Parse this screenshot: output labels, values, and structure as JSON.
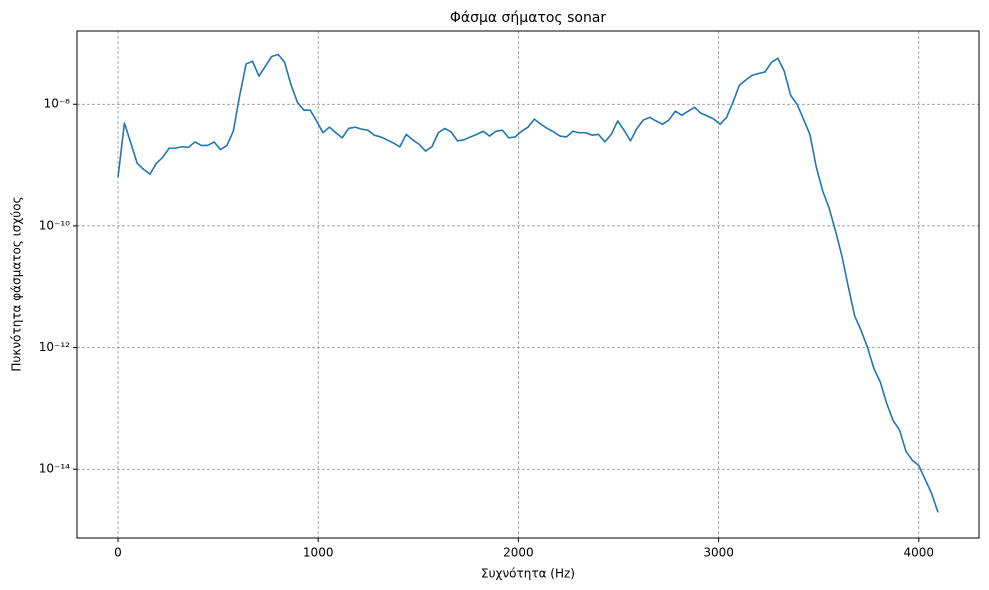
{
  "chart_data": {
    "type": "line",
    "title": "Φάσμα σήματος sonar",
    "x_label": "Συχνότητα (Hz)",
    "y_label": "Πυκνότητα φάσματος ισχύος",
    "x": [
      0,
      32,
      64,
      96,
      128,
      160,
      192,
      224,
      256,
      288,
      320,
      352,
      384,
      416,
      448,
      480,
      512,
      544,
      576,
      608,
      640,
      672,
      704,
      736,
      768,
      800,
      832,
      864,
      896,
      928,
      960,
      992,
      1024,
      1056,
      1088,
      1120,
      1152,
      1184,
      1216,
      1248,
      1280,
      1312,
      1344,
      1376,
      1408,
      1440,
      1472,
      1504,
      1536,
      1568,
      1600,
      1632,
      1664,
      1696,
      1728,
      1760,
      1792,
      1824,
      1856,
      1888,
      1920,
      1952,
      1984,
      2016,
      2048,
      2080,
      2112,
      2144,
      2176,
      2208,
      2240,
      2272,
      2304,
      2336,
      2368,
      2400,
      2432,
      2464,
      2496,
      2528,
      2560,
      2592,
      2624,
      2656,
      2688,
      2720,
      2752,
      2784,
      2816,
      2848,
      2880,
      2912,
      2944,
      2976,
      3008,
      3040,
      3072,
      3104,
      3136,
      3168,
      3200,
      3232,
      3264,
      3296,
      3328,
      3360,
      3392,
      3424,
      3456,
      3488,
      3520,
      3552,
      3584,
      3616,
      3648,
      3680,
      3712,
      3744,
      3776,
      3808,
      3840,
      3872,
      3904,
      3936,
      3968,
      4000,
      4032,
      4064,
      4096
    ],
    "values": [
      6.3e-10,
      4.9e-09,
      2.3e-09,
      1.07e-09,
      8.5e-10,
      7.1e-10,
      1.07e-09,
      1.35e-09,
      1.9e-09,
      1.9e-09,
      2e-09,
      1.95e-09,
      2.4e-09,
      2.1e-09,
      2.1e-09,
      2.4e-09,
      1.8e-09,
      2.1e-09,
      3.6e-09,
      1.4e-08,
      4.6e-08,
      5.1e-08,
      2.9e-08,
      4.2e-08,
      6.1e-08,
      6.6e-08,
      4.9e-08,
      2.1e-08,
      1.08e-08,
      8e-09,
      8e-09,
      5.3e-09,
      3.4e-09,
      4.2e-09,
      3.4e-09,
      2.8e-09,
      4e-09,
      4.2e-09,
      3.9e-09,
      3.75e-09,
      3.1e-09,
      2.9e-09,
      2.6e-09,
      2.3e-09,
      2e-09,
      3.2e-09,
      2.6e-09,
      2.2e-09,
      1.7e-09,
      2e-09,
      3.4e-09,
      4e-09,
      3.5e-09,
      2.5e-09,
      2.6e-09,
      2.9e-09,
      3.2e-09,
      3.6e-09,
      3e-09,
      3.6e-09,
      3.75e-09,
      2.8e-09,
      2.9e-09,
      3.6e-09,
      4.2e-09,
      5.7e-09,
      4.7e-09,
      4e-09,
      3.5e-09,
      3e-09,
      2.9e-09,
      3.6e-09,
      3.4e-09,
      3.4e-09,
      3.1e-09,
      3.2e-09,
      2.4e-09,
      3.2e-09,
      5.3e-09,
      3.75e-09,
      2.5e-09,
      4e-09,
      5.5e-09,
      6.1e-09,
      5.3e-09,
      4.7e-09,
      5.5e-09,
      7.7e-09,
      6.6e-09,
      7.7e-09,
      8.9e-09,
      7.1e-09,
      6.4e-09,
      5.7e-09,
      4.7e-09,
      6.1e-09,
      1.08e-08,
      2.05e-08,
      2.5e-08,
      3e-08,
      3.2e-08,
      3.4e-08,
      4.9e-08,
      5.7e-08,
      3.5e-08,
      1.4e-08,
      1e-08,
      5.7e-09,
      3.2e-09,
      9.3e-10,
      3.75e-10,
      1.97e-10,
      8.3e-11,
      3.2e-11,
      1e-11,
      3.3e-12,
      1.9e-12,
      1e-12,
      4.5e-13,
      2.7e-13,
      1.2e-13,
      6.3e-14,
      4.4e-14,
      1.97e-14,
      1.4e-14,
      1.15e-14,
      6.8e-15,
      4e-15,
      1.95e-15
    ],
    "color": "#1f77b4",
    "xlim": [
      -204.8,
      4300.8
    ],
    "xticks": [
      0,
      1000,
      2000,
      3000,
      4000
    ],
    "ylim": [
      7.4e-16,
      1.6e-07
    ],
    "y_scale": "log",
    "yticks": [
      {
        "value": 1e-14,
        "label": "10⁻¹⁴"
      },
      {
        "value": 1e-12,
        "label": "10⁻¹²"
      },
      {
        "value": 1e-10,
        "label": "10⁻¹⁰"
      },
      {
        "value": 1e-08,
        "label": "10⁻⁸"
      }
    ],
    "grid": true
  }
}
